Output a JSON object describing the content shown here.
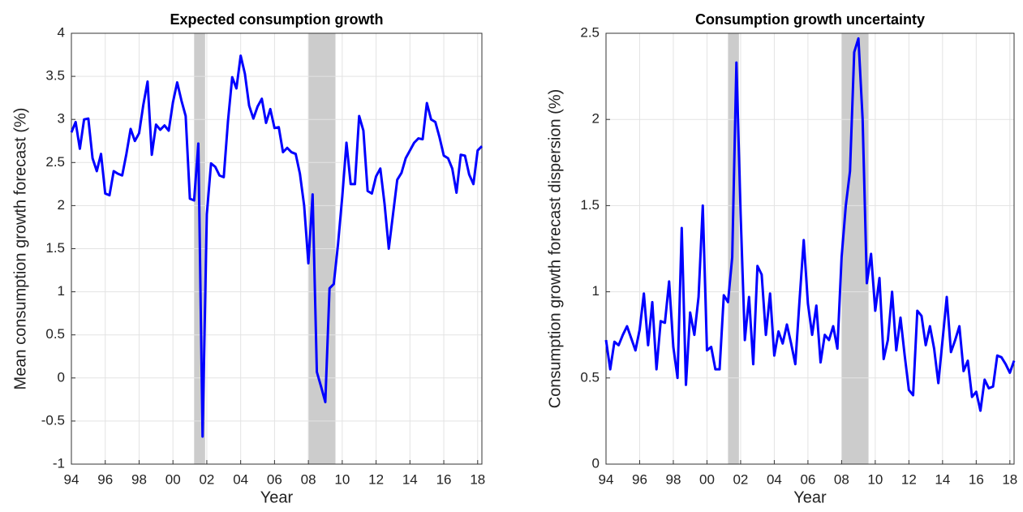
{
  "chart_data": [
    {
      "type": "line",
      "title": "Expected consumption growth",
      "x_label": "Year",
      "y_label": "Mean consumption growth forecast (%)",
      "x": [
        1994,
        1994.25,
        1994.5,
        1994.75,
        1995,
        1995.25,
        1995.5,
        1995.75,
        1996,
        1996.25,
        1996.5,
        1996.75,
        1997,
        1997.25,
        1997.5,
        1997.75,
        1998,
        1998.25,
        1998.5,
        1998.75,
        1999,
        1999.25,
        1999.5,
        1999.75,
        2000,
        2000.25,
        2000.5,
        2000.75,
        2001,
        2001.25,
        2001.5,
        2001.75,
        2002,
        2002.25,
        2002.5,
        2002.75,
        2003,
        2003.25,
        2003.5,
        2003.75,
        2004,
        2004.25,
        2004.5,
        2004.75,
        2005,
        2005.25,
        2005.5,
        2005.75,
        2006,
        2006.25,
        2006.5,
        2006.75,
        2007,
        2007.25,
        2007.5,
        2007.75,
        2008,
        2008.25,
        2008.5,
        2008.75,
        2009,
        2009.25,
        2009.5,
        2009.75,
        2010,
        2010.25,
        2010.5,
        2010.75,
        2011,
        2011.25,
        2011.5,
        2011.75,
        2012,
        2012.25,
        2012.5,
        2012.75,
        2013,
        2013.25,
        2013.5,
        2013.75,
        2014,
        2014.25,
        2014.5,
        2014.75,
        2015,
        2015.25,
        2015.5,
        2015.75,
        2016,
        2016.25,
        2016.5,
        2016.75,
        2017,
        2017.25,
        2017.5,
        2017.75,
        2018,
        2018.25
      ],
      "values": [
        2.85,
        2.97,
        2.66,
        3.0,
        3.01,
        2.55,
        2.4,
        2.6,
        2.14,
        2.12,
        2.4,
        2.37,
        2.35,
        2.6,
        2.89,
        2.75,
        2.84,
        3.17,
        3.44,
        2.59,
        2.94,
        2.88,
        2.93,
        2.87,
        3.2,
        3.43,
        3.22,
        3.04,
        2.08,
        2.06,
        2.72,
        -0.68,
        1.9,
        2.49,
        2.45,
        2.35,
        2.33,
        2.98,
        3.49,
        3.36,
        3.74,
        3.53,
        3.16,
        3.01,
        3.15,
        3.24,
        2.96,
        3.12,
        2.9,
        2.91,
        2.62,
        2.67,
        2.62,
        2.6,
        2.37,
        2.0,
        1.33,
        2.13,
        0.07,
        -0.1,
        -0.28,
        1.04,
        1.09,
        1.55,
        2.1,
        2.73,
        2.25,
        2.25,
        3.04,
        2.87,
        2.17,
        2.14,
        2.34,
        2.43,
        2.02,
        1.5,
        1.9,
        2.3,
        2.38,
        2.55,
        2.64,
        2.73,
        2.78,
        2.77,
        3.19,
        3.0,
        2.97,
        2.79,
        2.58,
        2.55,
        2.43,
        2.15,
        2.59,
        2.58,
        2.36,
        2.25,
        2.64,
        2.69
      ],
      "color": "#0000ff",
      "shaded_regions": [
        [
          2001.25,
          2001.9
        ],
        [
          2008,
          2009.6
        ]
      ],
      "shade_color": "#cccccc",
      "xlim": [
        1994,
        2018.25
      ],
      "xticks": [
        {
          "value": 1994,
          "label": "94"
        },
        {
          "value": 1996,
          "label": "96"
        },
        {
          "value": 1998,
          "label": "98"
        },
        {
          "value": 2000,
          "label": "00"
        },
        {
          "value": 2002,
          "label": "02"
        },
        {
          "value": 2004,
          "label": "04"
        },
        {
          "value": 2006,
          "label": "06"
        },
        {
          "value": 2008,
          "label": "08"
        },
        {
          "value": 2010,
          "label": "10"
        },
        {
          "value": 2012,
          "label": "12"
        },
        {
          "value": 2014,
          "label": "14"
        },
        {
          "value": 2016,
          "label": "16"
        },
        {
          "value": 2018,
          "label": "18"
        }
      ],
      "ylim": [
        -1,
        4
      ],
      "yticks": [
        -1,
        -0.5,
        0,
        0.5,
        1,
        1.5,
        2,
        2.5,
        3,
        3.5,
        4
      ],
      "grid": true
    },
    {
      "type": "line",
      "title": "Consumption growth uncertainty",
      "x_label": "Year",
      "y_label": "Consumption growth forecast dispersion (%)",
      "x": [
        1994,
        1994.25,
        1994.5,
        1994.75,
        1995,
        1995.25,
        1995.5,
        1995.75,
        1996,
        1996.25,
        1996.5,
        1996.75,
        1997,
        1997.25,
        1997.5,
        1997.75,
        1998,
        1998.25,
        1998.5,
        1998.75,
        1999,
        1999.25,
        1999.5,
        1999.75,
        2000,
        2000.25,
        2000.5,
        2000.75,
        2001,
        2001.25,
        2001.5,
        2001.75,
        2002,
        2002.25,
        2002.5,
        2002.75,
        2003,
        2003.25,
        2003.5,
        2003.75,
        2004,
        2004.25,
        2004.5,
        2004.75,
        2005,
        2005.25,
        2005.5,
        2005.75,
        2006,
        2006.25,
        2006.5,
        2006.75,
        2007,
        2007.25,
        2007.5,
        2007.75,
        2008,
        2008.25,
        2008.5,
        2008.75,
        2009,
        2009.25,
        2009.5,
        2009.75,
        2010,
        2010.25,
        2010.5,
        2010.75,
        2011,
        2011.25,
        2011.5,
        2011.75,
        2012,
        2012.25,
        2012.5,
        2012.75,
        2013,
        2013.25,
        2013.5,
        2013.75,
        2014,
        2014.25,
        2014.5,
        2014.75,
        2015,
        2015.25,
        2015.5,
        2015.75,
        2016,
        2016.25,
        2016.5,
        2016.75,
        2017,
        2017.25,
        2017.5,
        2017.75,
        2018,
        2018.25
      ],
      "values": [
        0.72,
        0.55,
        0.71,
        0.69,
        0.75,
        0.8,
        0.73,
        0.66,
        0.78,
        0.99,
        0.69,
        0.94,
        0.55,
        0.83,
        0.82,
        1.06,
        0.68,
        0.5,
        1.37,
        0.46,
        0.88,
        0.75,
        0.97,
        1.5,
        0.66,
        0.68,
        0.55,
        0.55,
        0.98,
        0.94,
        1.2,
        2.33,
        1.45,
        0.72,
        0.97,
        0.58,
        1.15,
        1.1,
        0.75,
        0.99,
        0.63,
        0.77,
        0.7,
        0.81,
        0.7,
        0.58,
        0.95,
        1.3,
        0.93,
        0.75,
        0.92,
        0.59,
        0.75,
        0.72,
        0.8,
        0.67,
        1.2,
        1.5,
        1.7,
        2.39,
        2.47,
        2.0,
        1.05,
        1.22,
        0.89,
        1.08,
        0.61,
        0.72,
        1.0,
        0.66,
        0.85,
        0.63,
        0.43,
        0.4,
        0.89,
        0.86,
        0.69,
        0.8,
        0.67,
        0.47,
        0.72,
        0.97,
        0.65,
        0.72,
        0.8,
        0.54,
        0.6,
        0.39,
        0.42,
        0.31,
        0.49,
        0.44,
        0.45,
        0.63,
        0.62,
        0.58,
        0.53,
        0.6
      ],
      "color": "#0000ff",
      "shaded_regions": [
        [
          2001.25,
          2001.9
        ],
        [
          2008,
          2009.6
        ]
      ],
      "shade_color": "#cccccc",
      "xlim": [
        1994,
        2018.25
      ],
      "xticks": [
        {
          "value": 1994,
          "label": "94"
        },
        {
          "value": 1996,
          "label": "96"
        },
        {
          "value": 1998,
          "label": "98"
        },
        {
          "value": 2000,
          "label": "00"
        },
        {
          "value": 2002,
          "label": "02"
        },
        {
          "value": 2004,
          "label": "04"
        },
        {
          "value": 2006,
          "label": "06"
        },
        {
          "value": 2008,
          "label": "08"
        },
        {
          "value": 2010,
          "label": "10"
        },
        {
          "value": 2012,
          "label": "12"
        },
        {
          "value": 2014,
          "label": "14"
        },
        {
          "value": 2016,
          "label": "16"
        },
        {
          "value": 2018,
          "label": "18"
        }
      ],
      "ylim": [
        0,
        2.5
      ],
      "yticks": [
        0,
        0.5,
        1,
        1.5,
        2,
        2.5
      ],
      "grid": true
    }
  ]
}
